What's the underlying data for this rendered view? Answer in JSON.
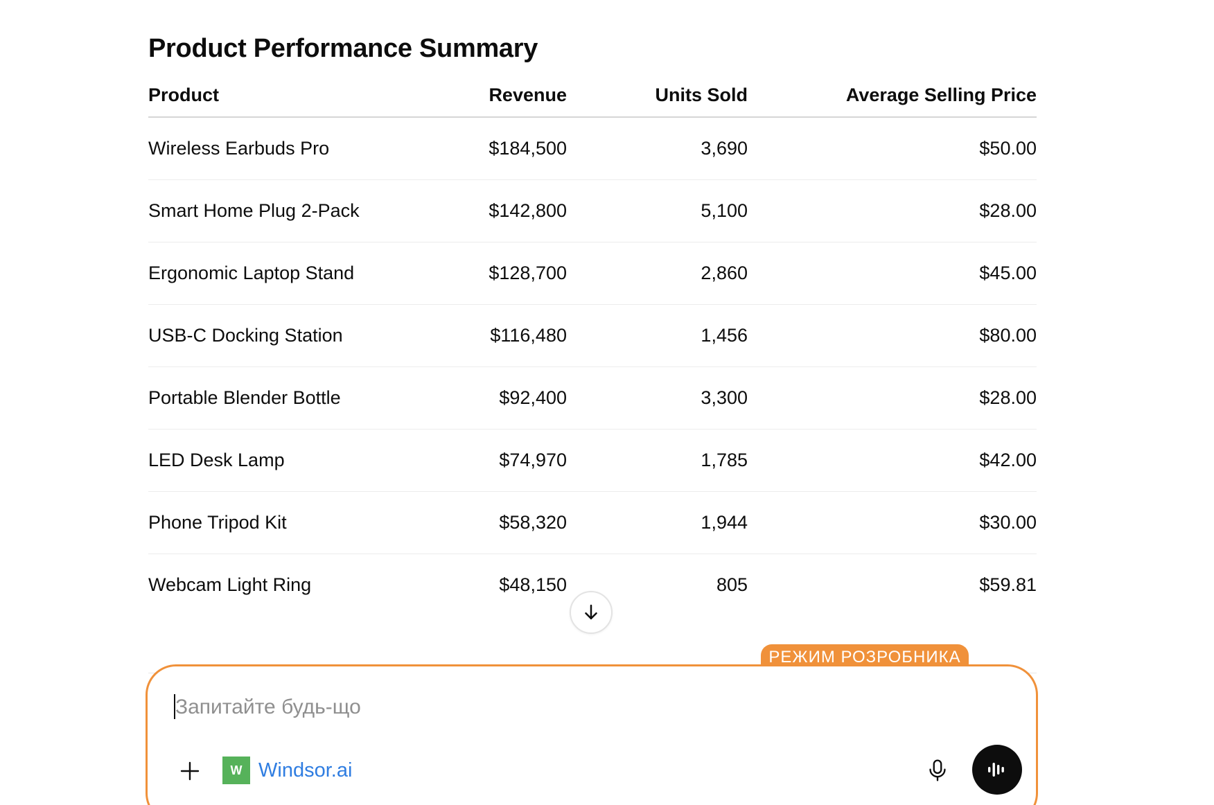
{
  "summary": {
    "title": "Product Performance Summary",
    "columns": [
      "Product",
      "Revenue",
      "Units Sold",
      "Average Selling Price"
    ],
    "rows": [
      [
        "Wireless Earbuds Pro",
        "$184,500",
        "3,690",
        "$50.00"
      ],
      [
        "Smart Home Plug 2-Pack",
        "$142,800",
        "5,100",
        "$28.00"
      ],
      [
        "Ergonomic Laptop Stand",
        "$128,700",
        "2,860",
        "$45.00"
      ],
      [
        "USB-C Docking Station",
        "$116,480",
        "1,456",
        "$80.00"
      ],
      [
        "Portable Blender Bottle",
        "$92,400",
        "3,300",
        "$28.00"
      ],
      [
        "LED Desk Lamp",
        "$74,970",
        "1,785",
        "$42.00"
      ],
      [
        "Phone Tripod Kit",
        "$58,320",
        "1,944",
        "$30.00"
      ],
      [
        "Webcam Light Ring",
        "$48,150",
        "805",
        "$59.81"
      ]
    ]
  },
  "scroll_button": {
    "icon": "arrow-down-icon"
  },
  "composer": {
    "mode_badge": "РЕЖИМ РОЗРОБНИКА",
    "placeholder": "Запитайте будь-що",
    "value": "",
    "add_icon": "plus-icon",
    "connector": {
      "logo_letter": "W",
      "label": "Windsor.ai",
      "logo_color": "#56b25a"
    },
    "mic_icon": "microphone-icon",
    "voice_icon": "voice-waveform-icon"
  },
  "colors": {
    "accent": "#f0913a",
    "link": "#2f7de1",
    "text": "#0d0d0d"
  }
}
